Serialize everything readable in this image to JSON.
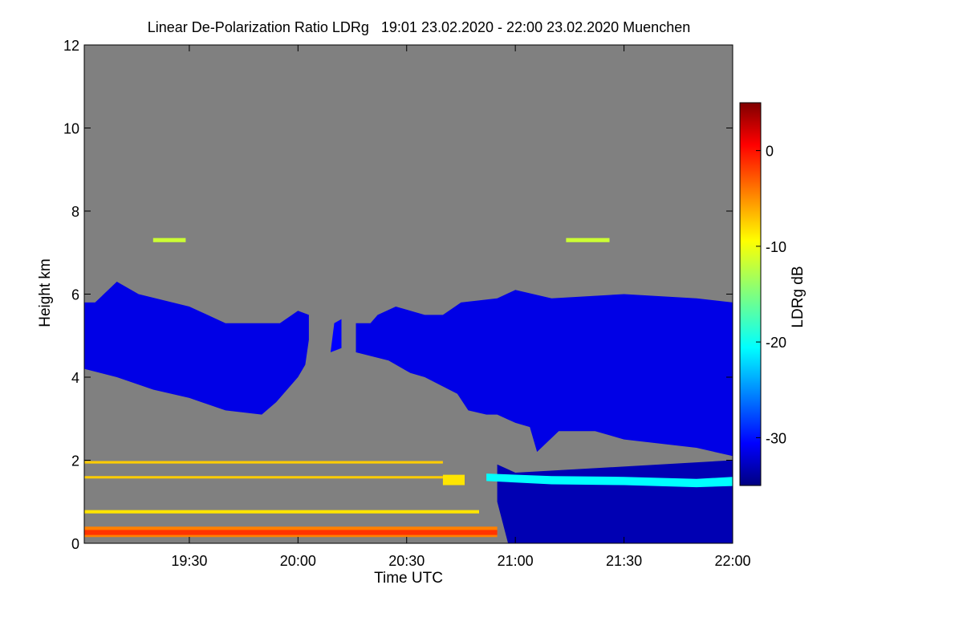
{
  "chart_data": {
    "type": "heatmap",
    "title": "Linear De-Polarization Ratio LDRg   19:01 23.02.2020 - 22:00 23.02.2020 Muenchen",
    "xlabel": "Time UTC",
    "ylabel": "Height km",
    "x_range": [
      "19:01",
      "22:00"
    ],
    "y_range": [
      0,
      12
    ],
    "x_ticks": [
      {
        "value": "19:30",
        "label": "19:30"
      },
      {
        "value": "20:00",
        "label": "20:00"
      },
      {
        "value": "20:30",
        "label": "20:30"
      },
      {
        "value": "21:00",
        "label": "21:00"
      },
      {
        "value": "21:30",
        "label": "21:30"
      },
      {
        "value": "22:00",
        "label": "22:00"
      }
    ],
    "y_ticks": [
      {
        "value": 0,
        "label": "0"
      },
      {
        "value": 2,
        "label": "2"
      },
      {
        "value": 4,
        "label": "4"
      },
      {
        "value": 6,
        "label": "6"
      },
      {
        "value": 8,
        "label": "8"
      },
      {
        "value": 10,
        "label": "10"
      },
      {
        "value": 12,
        "label": "12"
      }
    ],
    "background_color": "#808080",
    "colorbar": {
      "label": "LDRg dB",
      "range": [
        -35,
        5
      ],
      "ticks": [
        {
          "value": 0,
          "label": "0"
        },
        {
          "value": -10,
          "label": "-10"
        },
        {
          "value": -20,
          "label": "-20"
        },
        {
          "value": -30,
          "label": "-30"
        }
      ],
      "colormap": "jet"
    },
    "regions": [
      {
        "name": "cirrus-layer",
        "ldr_db": -31,
        "polygon": [
          [
            "19:01",
            4.2
          ],
          [
            "19:10",
            4.0
          ],
          [
            "19:20",
            3.7
          ],
          [
            "19:30",
            3.5
          ],
          [
            "19:40",
            3.2
          ],
          [
            "19:50",
            3.1
          ],
          [
            "19:54",
            3.4
          ],
          [
            "20:00",
            4.0
          ],
          [
            "20:02",
            4.3
          ],
          [
            "20:03",
            4.9
          ],
          [
            "20:03",
            5.5
          ],
          [
            "20:00",
            5.6
          ],
          [
            "19:55",
            5.3
          ],
          [
            "19:40",
            5.3
          ],
          [
            "19:30",
            5.7
          ],
          [
            "19:16",
            6.0
          ],
          [
            "19:10",
            6.3
          ],
          [
            "19:04",
            5.8
          ],
          [
            "19:01",
            5.8
          ]
        ]
      },
      {
        "name": "cirrus-layer",
        "ldr_db": -31,
        "polygon": [
          [
            "20:16",
            4.6
          ],
          [
            "20:25",
            4.4
          ],
          [
            "20:31",
            4.1
          ],
          [
            "20:35",
            4.0
          ],
          [
            "20:44",
            3.6
          ],
          [
            "20:47",
            3.2
          ],
          [
            "20:52",
            3.1
          ],
          [
            "20:55",
            3.1
          ],
          [
            "21:00",
            2.9
          ],
          [
            "21:04",
            2.8
          ],
          [
            "21:06",
            2.2
          ],
          [
            "21:12",
            2.7
          ],
          [
            "21:22",
            2.7
          ],
          [
            "21:30",
            2.5
          ],
          [
            "21:50",
            2.3
          ],
          [
            "22:00",
            2.1
          ],
          [
            "22:00",
            5.8
          ],
          [
            "21:50",
            5.9
          ],
          [
            "21:30",
            6.0
          ],
          [
            "21:10",
            5.9
          ],
          [
            "21:00",
            6.1
          ],
          [
            "20:55",
            5.9
          ],
          [
            "20:45",
            5.8
          ],
          [
            "20:40",
            5.5
          ],
          [
            "20:35",
            5.5
          ],
          [
            "20:27",
            5.7
          ],
          [
            "20:22",
            5.5
          ],
          [
            "20:20",
            5.3
          ],
          [
            "20:16",
            5.3
          ]
        ]
      },
      {
        "name": "cirrus-fragment",
        "ldr_db": -30,
        "polygon": [
          [
            "20:09",
            4.6
          ],
          [
            "20:12",
            4.7
          ],
          [
            "20:12",
            5.4
          ],
          [
            "20:10",
            5.3
          ]
        ]
      },
      {
        "name": "boundary-layer-cloud-region",
        "ldr_db": -33,
        "polygon": [
          [
            "20:55",
            1.9
          ],
          [
            "21:00",
            1.7
          ],
          [
            "21:20",
            1.8
          ],
          [
            "21:40",
            1.9
          ],
          [
            "22:00",
            2.0
          ],
          [
            "22:00",
            0
          ],
          [
            "20:58",
            0
          ],
          [
            "20:55",
            1.0
          ]
        ]
      },
      {
        "name": "aerosol-layer-band",
        "ldr_db": -5,
        "polygon": [
          [
            "19:01",
            0.4
          ],
          [
            "20:55",
            0.4
          ],
          [
            "20:55",
            0.15
          ],
          [
            "19:01",
            0.15
          ]
        ]
      },
      {
        "name": "aerosol-layer-band-core",
        "ldr_db": -2,
        "polygon": [
          [
            "19:01",
            0.32
          ],
          [
            "20:55",
            0.32
          ],
          [
            "20:55",
            0.2
          ],
          [
            "19:01",
            0.2
          ]
        ]
      },
      {
        "name": "cloud-base-line",
        "ldr_db": -20,
        "polygon": [
          [
            "20:52",
            1.68
          ],
          [
            "21:10",
            1.62
          ],
          [
            "21:30",
            1.6
          ],
          [
            "21:50",
            1.55
          ],
          [
            "22:00",
            1.6
          ],
          [
            "22:00",
            1.38
          ],
          [
            "21:50",
            1.35
          ],
          [
            "21:30",
            1.4
          ],
          [
            "21:10",
            1.42
          ],
          [
            "20:52",
            1.5
          ]
        ]
      },
      {
        "name": "speckle-line",
        "ldr_db": -12,
        "polygon": [
          [
            "19:20",
            7.35
          ],
          [
            "19:29",
            7.35
          ],
          [
            "19:29",
            7.25
          ],
          [
            "19:20",
            7.25
          ]
        ]
      },
      {
        "name": "speckle-line",
        "ldr_db": -12,
        "polygon": [
          [
            "21:14",
            7.35
          ],
          [
            "21:26",
            7.35
          ],
          [
            "21:26",
            7.25
          ],
          [
            "21:14",
            7.25
          ]
        ]
      },
      {
        "name": "speckle-line",
        "ldr_db": -8,
        "polygon": [
          [
            "19:01",
            1.98
          ],
          [
            "20:40",
            1.98
          ],
          [
            "20:40",
            1.92
          ],
          [
            "19:01",
            1.92
          ]
        ]
      },
      {
        "name": "speckle-line",
        "ldr_db": -8,
        "polygon": [
          [
            "19:01",
            1.62
          ],
          [
            "20:40",
            1.62
          ],
          [
            "20:40",
            1.56
          ],
          [
            "19:01",
            1.56
          ]
        ]
      },
      {
        "name": "speckle-line",
        "ldr_db": -9,
        "polygon": [
          [
            "19:01",
            0.8
          ],
          [
            "20:50",
            0.8
          ],
          [
            "20:50",
            0.72
          ],
          [
            "19:01",
            0.72
          ]
        ]
      },
      {
        "name": "speckle-line",
        "ldr_db": -9,
        "polygon": [
          [
            "20:40",
            1.65
          ],
          [
            "20:46",
            1.65
          ],
          [
            "20:46",
            1.4
          ],
          [
            "20:40",
            1.4
          ]
        ]
      }
    ]
  }
}
